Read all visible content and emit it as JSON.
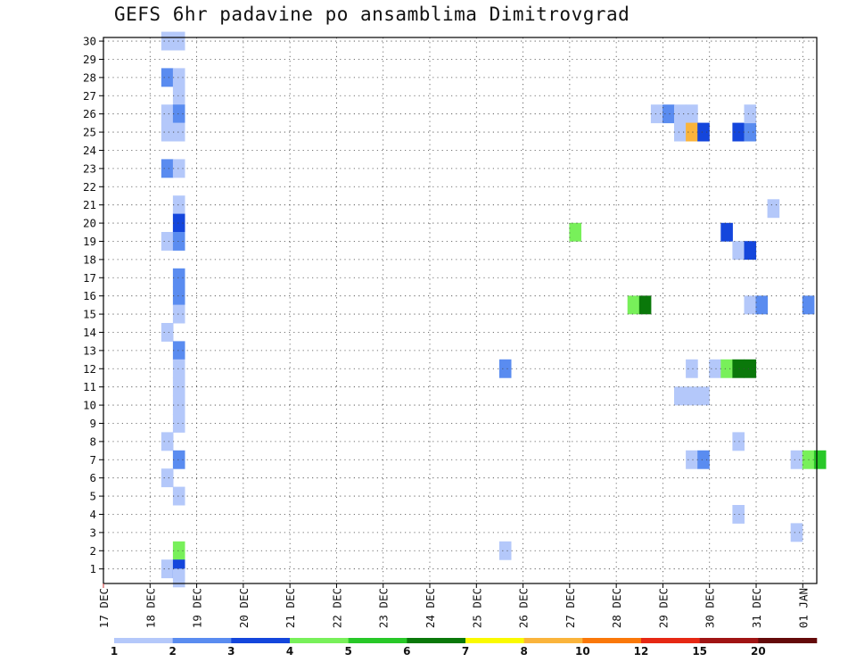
{
  "chart_data": {
    "type": "heatmap",
    "title": "GEFS 6hr padavine po ansamblima Dimitrovgrad",
    "x_tick_labels": [
      "17 DEC",
      "18 DEC",
      "19 DEC",
      "20 DEC",
      "21 DEC",
      "22 DEC",
      "23 DEC",
      "24 DEC",
      "25 DEC",
      "26 DEC",
      "27 DEC",
      "28 DEC",
      "29 DEC",
      "30 DEC",
      "31 DEC",
      "01 JAN"
    ],
    "y_tick_labels": [
      "1",
      "2",
      "3",
      "4",
      "5",
      "6",
      "7",
      "8",
      "9",
      "10",
      "11",
      "12",
      "13",
      "14",
      "15",
      "16",
      "17",
      "18",
      "19",
      "20",
      "21",
      "22",
      "23",
      "24",
      "25",
      "26",
      "27",
      "28",
      "29",
      "30"
    ],
    "x_range_days": [
      0,
      15.3
    ],
    "y_range_members": [
      0.2,
      30.2
    ],
    "grid": true,
    "color_scale": {
      "colors": [
        "#b4c8fa",
        "#5a8cf0",
        "#1446dc",
        "#78f05a",
        "#28c828",
        "#0a780a",
        "#fafa00",
        "#fab43c",
        "#fa780a",
        "#e62814",
        "#a01414",
        "#640a0a"
      ],
      "labels": [
        "1",
        "2",
        "3",
        "4",
        "5",
        "6",
        "7",
        "8",
        "10",
        "12",
        "15",
        "20"
      ]
    },
    "cells": [
      [
        1.5,
        30,
        1
      ],
      [
        1.75,
        30,
        1
      ],
      [
        1.5,
        28,
        2
      ],
      [
        1.75,
        28,
        1
      ],
      [
        1.75,
        27,
        1
      ],
      [
        1.5,
        26,
        1
      ],
      [
        1.75,
        26,
        2
      ],
      [
        1.5,
        25,
        1
      ],
      [
        1.75,
        25,
        1
      ],
      [
        1.5,
        23,
        2
      ],
      [
        1.75,
        23,
        1
      ],
      [
        1.75,
        21,
        1
      ],
      [
        1.75,
        20,
        3
      ],
      [
        1.5,
        19,
        1
      ],
      [
        1.75,
        19,
        2
      ],
      [
        1.75,
        17,
        2
      ],
      [
        1.75,
        16,
        2
      ],
      [
        1.75,
        15,
        1
      ],
      [
        1.5,
        14,
        1
      ],
      [
        1.75,
        13,
        2
      ],
      [
        1.75,
        12,
        1
      ],
      [
        1.75,
        11,
        1
      ],
      [
        1.75,
        10,
        1
      ],
      [
        1.75,
        9,
        1
      ],
      [
        1.5,
        8,
        1
      ],
      [
        1.75,
        7,
        2
      ],
      [
        1.5,
        6,
        1
      ],
      [
        1.75,
        5,
        1
      ],
      [
        1.75,
        2,
        4
      ],
      [
        1.5,
        1,
        1
      ],
      [
        1.75,
        1,
        3
      ],
      [
        1.75,
        0.5,
        1
      ],
      [
        8.75,
        12,
        2
      ],
      [
        8.75,
        2,
        1
      ],
      [
        10.25,
        19.5,
        4
      ],
      [
        11.5,
        15.5,
        4
      ],
      [
        11.75,
        15.5,
        6
      ],
      [
        12.0,
        26,
        1
      ],
      [
        12.25,
        26,
        2
      ],
      [
        12.5,
        26,
        1
      ],
      [
        12.75,
        26,
        1
      ],
      [
        12.5,
        25,
        1
      ],
      [
        12.75,
        25,
        8
      ],
      [
        13.0,
        25,
        3
      ],
      [
        12.5,
        10.5,
        1
      ],
      [
        12.75,
        10.5,
        1
      ],
      [
        13.0,
        10.5,
        1
      ],
      [
        12.75,
        12,
        1
      ],
      [
        12.75,
        7,
        1
      ],
      [
        13.0,
        7,
        2
      ],
      [
        13.25,
        12,
        1
      ],
      [
        13.5,
        12,
        4
      ],
      [
        13.75,
        12,
        6
      ],
      [
        14.0,
        12,
        6
      ],
      [
        13.5,
        19.5,
        3
      ],
      [
        13.75,
        8,
        1
      ],
      [
        13.75,
        4,
        1
      ],
      [
        13.75,
        25,
        3
      ],
      [
        14.0,
        25,
        2
      ],
      [
        14.0,
        26,
        1
      ],
      [
        13.75,
        18.5,
        1
      ],
      [
        14.0,
        18.5,
        3
      ],
      [
        14.0,
        15.5,
        1
      ],
      [
        14.25,
        15.5,
        2
      ],
      [
        14.5,
        20.8,
        1
      ],
      [
        15.25,
        15.5,
        2
      ],
      [
        15.0,
        7,
        1
      ],
      [
        15.25,
        7,
        4
      ],
      [
        15.5,
        7,
        5
      ],
      [
        15.0,
        3,
        1
      ]
    ]
  }
}
